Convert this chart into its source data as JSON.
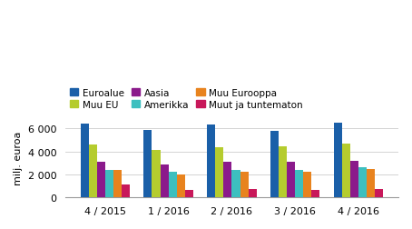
{
  "categories": [
    "4 / 2015",
    "1 / 2016",
    "2 / 2016",
    "3 / 2016",
    "4 / 2016"
  ],
  "series": {
    "Euroalue": [
      6450,
      5850,
      6300,
      5800,
      6500
    ],
    "Muu EU": [
      4600,
      4150,
      4400,
      4420,
      4680
    ],
    "Aasia": [
      3100,
      2850,
      3100,
      3100,
      3200
    ],
    "Amerikka": [
      2350,
      2230,
      2350,
      2400,
      2600
    ],
    "Muu Eurooppa": [
      2400,
      2020,
      2230,
      2230,
      2450
    ],
    "Muut ja tuntematon": [
      1100,
      620,
      720,
      650,
      720
    ]
  },
  "colors": {
    "Euroalue": "#1a5fa8",
    "Muu EU": "#b5cc2e",
    "Aasia": "#8b1a8b",
    "Amerikka": "#3dbfbf",
    "Muu Eurooppa": "#e8831e",
    "Muut ja tuntematon": "#c8185a"
  },
  "legend_order": [
    "Euroalue",
    "Muu EU",
    "Aasia",
    "Amerikka",
    "Muu Eurooppa",
    "Muut ja tuntematon"
  ],
  "ylabel": "milj. euroa",
  "ylim": [
    0,
    7000
  ],
  "yticks": [
    0,
    2000,
    4000,
    6000
  ],
  "bar_width": 0.13,
  "figsize": [
    4.54,
    2.53
  ],
  "dpi": 100
}
